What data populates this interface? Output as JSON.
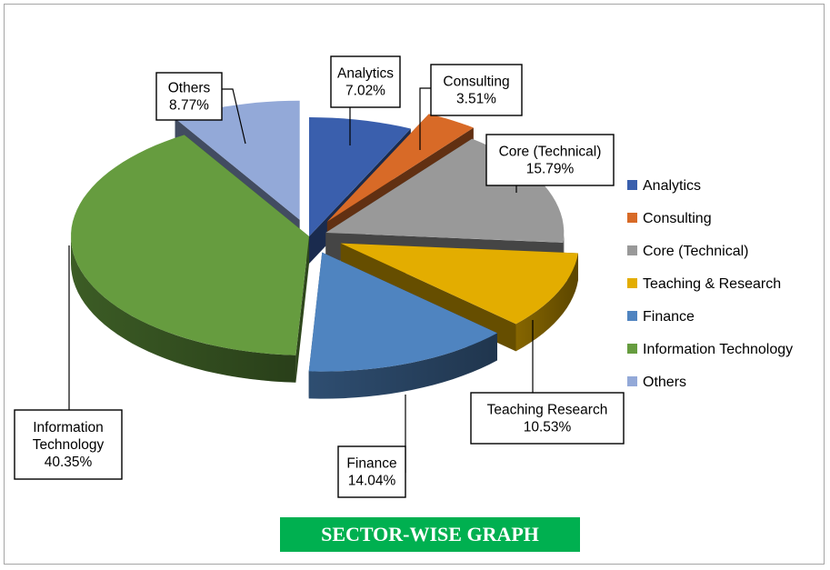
{
  "chart_data": {
    "type": "pie",
    "title": "SECTOR-WISE GRAPH",
    "slices": [
      {
        "name": "Analytics",
        "value": 7.02,
        "label": "7.02%",
        "color": "#3a5fad"
      },
      {
        "name": "Consulting",
        "value": 3.51,
        "label": "3.51%",
        "color": "#d86a27"
      },
      {
        "name": "Core (Technical)",
        "value": 15.79,
        "label": "15.79%",
        "color": "#999999"
      },
      {
        "name": "Teaching & Research",
        "callout_name": "Teaching Research",
        "value": 10.53,
        "label": "10.53%",
        "color": "#e3ad00"
      },
      {
        "name": "Finance",
        "value": 14.04,
        "label": "14.04%",
        "color": "#4f84c0"
      },
      {
        "name": "Information Technology",
        "callout_name": "Information\nTechnology",
        "value": 40.35,
        "label": "40.35%",
        "color": "#669c3f"
      },
      {
        "name": "Others",
        "value": 8.77,
        "label": "8.77%",
        "color": "#93a9d8"
      }
    ],
    "legend_position": "right",
    "style": "3d-exploded"
  }
}
